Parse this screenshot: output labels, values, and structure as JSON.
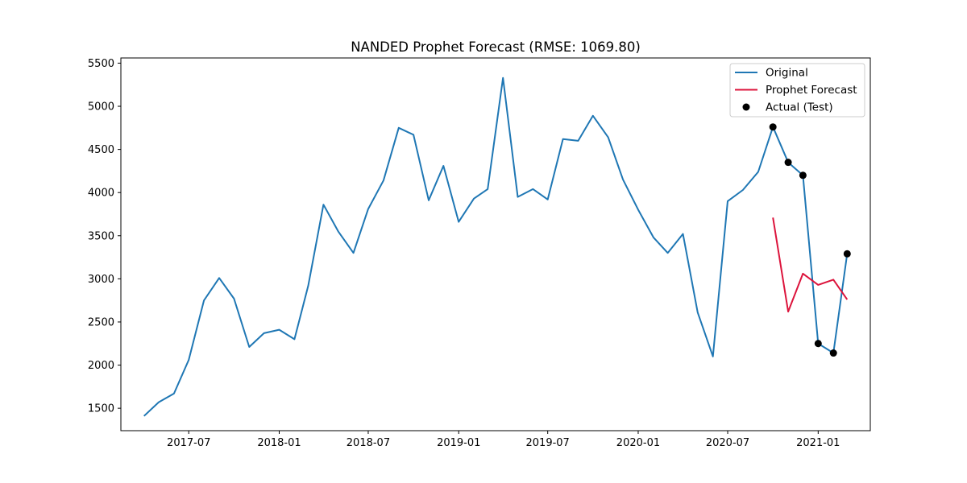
{
  "chart_data": {
    "type": "line",
    "title": "NANDED Prophet Forecast (RMSE: 1069.80)",
    "xlabel": "",
    "ylabel": "",
    "xlim": [
      "2017-02-13",
      "2021-04-17"
    ],
    "ylim": [
      1240,
      5560
    ],
    "x_ticks": [
      "2017-07-01",
      "2018-01-01",
      "2018-07-01",
      "2019-01-01",
      "2019-07-01",
      "2020-01-01",
      "2020-07-01",
      "2021-01-01"
    ],
    "x_tick_labels": [
      "2017-07",
      "2018-01",
      "2018-07",
      "2019-01",
      "2019-07",
      "2020-01",
      "2020-07",
      "2021-01"
    ],
    "y_ticks": [
      1500,
      2000,
      2500,
      3000,
      3500,
      4000,
      4500,
      5000,
      5500
    ],
    "y_tick_labels": [
      "1500",
      "2000",
      "2500",
      "3000",
      "3500",
      "4000",
      "4500",
      "5000",
      "5500"
    ],
    "grid": false,
    "legend_position": "top-right",
    "series": [
      {
        "name": "Original",
        "kind": "line",
        "color": "#1f77b4",
        "x": [
          "2017-04-01",
          "2017-05-01",
          "2017-06-01",
          "2017-07-01",
          "2017-08-01",
          "2017-09-01",
          "2017-10-01",
          "2017-11-01",
          "2017-12-01",
          "2018-01-01",
          "2018-02-01",
          "2018-03-01",
          "2018-04-01",
          "2018-05-01",
          "2018-06-01",
          "2018-07-01",
          "2018-08-01",
          "2018-09-01",
          "2018-10-01",
          "2018-11-01",
          "2018-12-01",
          "2019-01-01",
          "2019-02-01",
          "2019-03-01",
          "2019-04-01",
          "2019-05-01",
          "2019-06-01",
          "2019-07-01",
          "2019-08-01",
          "2019-09-01",
          "2019-10-01",
          "2019-11-01",
          "2019-12-01",
          "2020-01-01",
          "2020-02-01",
          "2020-03-01",
          "2020-04-01",
          "2020-05-01",
          "2020-06-01",
          "2020-07-01",
          "2020-08-01",
          "2020-09-01",
          "2020-10-01",
          "2020-11-01",
          "2020-12-01",
          "2021-01-01",
          "2021-02-01",
          "2021-03-01"
        ],
        "y": [
          1410,
          1570,
          1670,
          2060,
          2750,
          3010,
          2770,
          2210,
          2370,
          2410,
          2300,
          2920,
          3860,
          3550,
          3300,
          3810,
          4140,
          4750,
          4670,
          3910,
          4310,
          3660,
          3930,
          4040,
          5330,
          3950,
          4040,
          3920,
          4620,
          4600,
          4890,
          4640,
          4150,
          3800,
          3480,
          3300,
          3520,
          2610,
          2100,
          3900,
          4030,
          4240,
          4760,
          4350,
          4200,
          2250,
          2140,
          3290
        ]
      },
      {
        "name": "Prophet Forecast",
        "kind": "line",
        "color": "#dc143c",
        "x": [
          "2020-10-01",
          "2020-11-01",
          "2020-12-01",
          "2021-01-01",
          "2021-02-01",
          "2021-03-01"
        ],
        "y": [
          3710,
          2620,
          3060,
          2930,
          2990,
          2760
        ]
      },
      {
        "name": "Actual (Test)",
        "kind": "scatter",
        "color": "#000000",
        "x": [
          "2020-10-01",
          "2020-11-01",
          "2020-12-01",
          "2021-01-01",
          "2021-02-01",
          "2021-03-01"
        ],
        "y": [
          4760,
          4350,
          4200,
          2250,
          2140,
          3290
        ]
      }
    ]
  }
}
